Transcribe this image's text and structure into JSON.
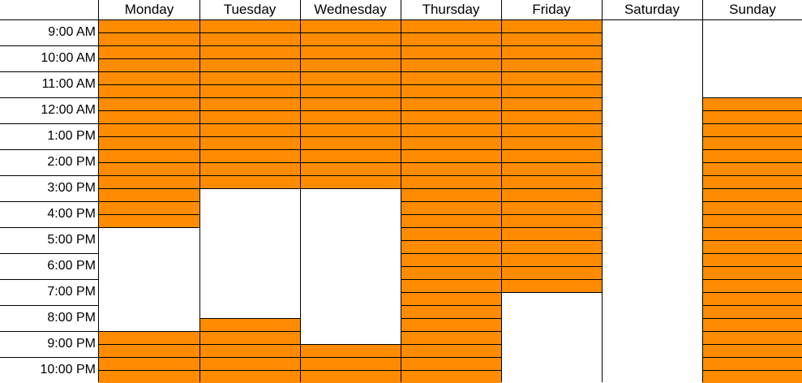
{
  "days": [
    "Monday",
    "Tuesday",
    "Wednesday",
    "Thursday",
    "Friday",
    "Saturday",
    "Sunday"
  ],
  "times": [
    "9:00 AM",
    "10:00 AM",
    "11:00 AM",
    "12:00 AM",
    "1:00 PM",
    "2:00 PM",
    "3:00 PM",
    "4:00 PM",
    "5:00 PM",
    "6:00 PM",
    "7:00 PM",
    "8:00 PM",
    "9:00 PM",
    "10:00 PM"
  ],
  "slots_per_hour": 2,
  "fill_color": "#FF8C00",
  "availability": [
    [
      [
        0,
        16
      ],
      [
        24,
        28
      ]
    ],
    [
      [
        0,
        13
      ],
      [
        23,
        28
      ]
    ],
    [
      [
        0,
        13
      ],
      [
        25,
        28
      ]
    ],
    [
      [
        0,
        28
      ]
    ],
    [
      [
        0,
        21
      ]
    ],
    [],
    [
      [
        6,
        28
      ]
    ]
  ]
}
